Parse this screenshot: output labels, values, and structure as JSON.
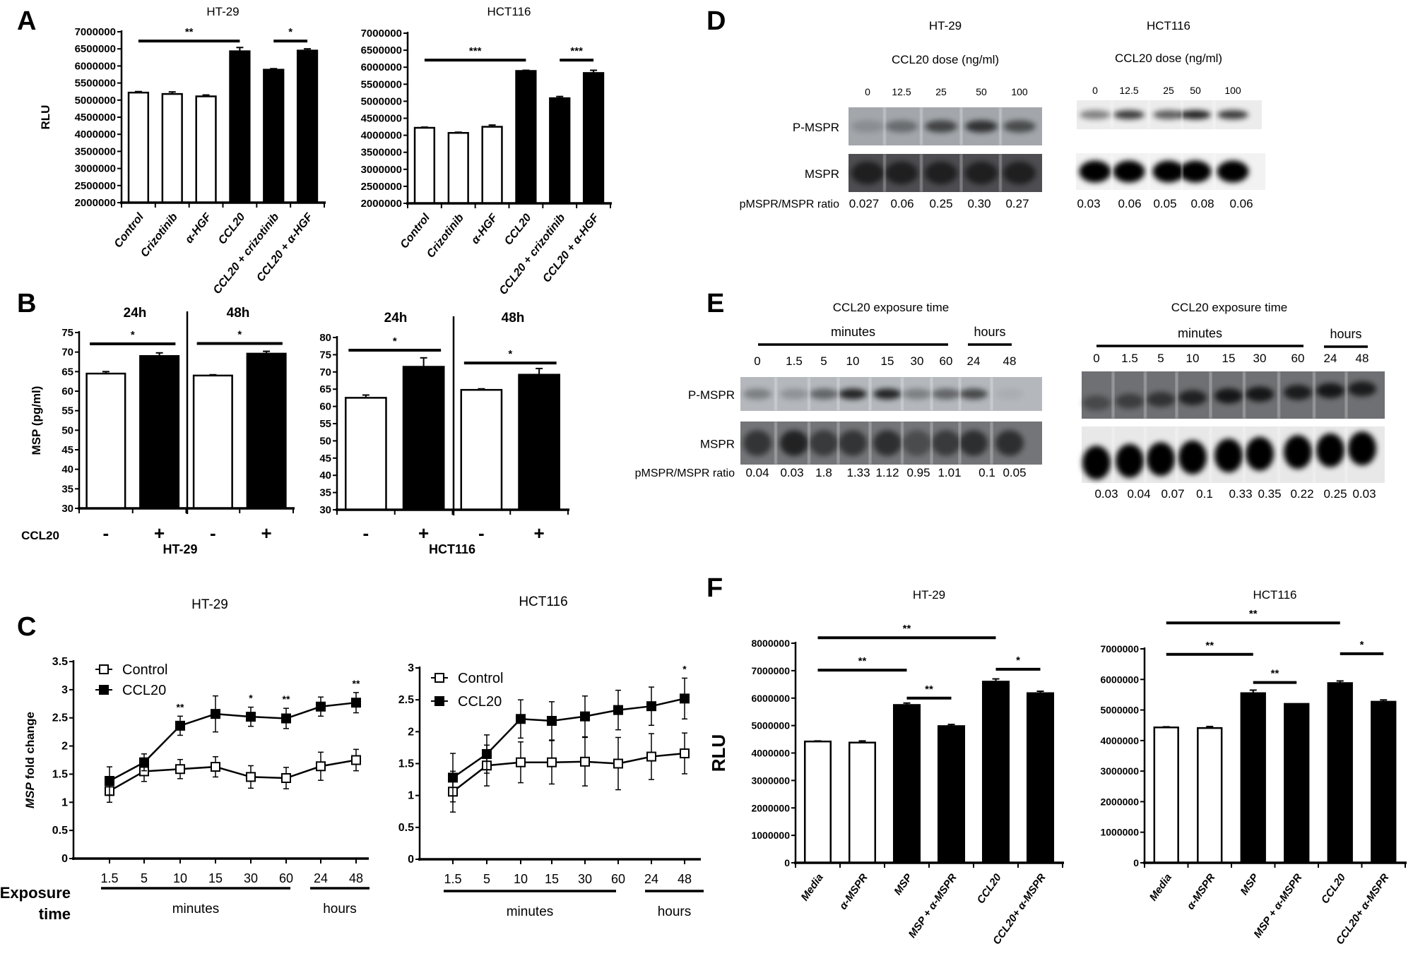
{
  "panel_labels": [
    "A",
    "B",
    "C",
    "D",
    "E",
    "F"
  ],
  "chart_data": [
    {
      "type": "bar",
      "title": "HT-29",
      "ylabel": "RLU",
      "categories": [
        "Control",
        "Crizotinib",
        "α-HGF",
        "CCL20",
        "CCL20 + crizotinib",
        "CCL20 + α-HGF"
      ],
      "values": [
        5220000,
        5180000,
        5110000,
        6430000,
        5890000,
        6450000
      ],
      "errors": [
        30000,
        60000,
        40000,
        110000,
        30000,
        50000
      ],
      "fills": [
        "#ffffff",
        "#ffffff",
        "#ffffff",
        "#000000",
        "#000000",
        "#000000"
      ],
      "ylim": [
        2000000,
        7000000
      ],
      "yticks": [
        2000000,
        2500000,
        3000000,
        3500000,
        4000000,
        4500000,
        5000000,
        5500000,
        6000000,
        6500000,
        7000000
      ],
      "significance": [
        {
          "from": "Control",
          "to": "CCL20",
          "label": "**"
        },
        {
          "from": "CCL20 + crizotinib",
          "to": "CCL20 + α-HGF",
          "label": "*"
        }
      ]
    },
    {
      "type": "bar",
      "title": "HCT116",
      "categories": [
        "Control",
        "Crizotinib",
        "α-HGF",
        "CCL20",
        "CCL20 + crizotinib",
        "CCL20 + α-HGF"
      ],
      "values": [
        4220000,
        4070000,
        4250000,
        5890000,
        5090000,
        5830000
      ],
      "errors": [
        20000,
        20000,
        50000,
        20000,
        50000,
        80000
      ],
      "fills": [
        "#ffffff",
        "#ffffff",
        "#ffffff",
        "#000000",
        "#000000",
        "#000000"
      ],
      "ylim": [
        2000000,
        7000000
      ],
      "yticks": [
        2000000,
        2500000,
        3000000,
        3500000,
        4000000,
        4500000,
        5000000,
        5500000,
        6000000,
        6500000,
        7000000
      ],
      "significance": [
        {
          "from": "Control",
          "to": "CCL20",
          "label": "***"
        },
        {
          "from": "CCL20 + crizotinib",
          "to": "CCL20 + α-HGF",
          "label": "***"
        }
      ]
    },
    {
      "type": "bar",
      "ylabel": "MSP (pg/ml)",
      "xlabel": "HT-29",
      "group_labels": [
        "24h",
        "48h"
      ],
      "treatment_label": "CCL20",
      "categories": [
        "-",
        "+",
        "-",
        "+"
      ],
      "values": [
        64.5,
        69.0,
        64.0,
        69.6
      ],
      "errors": [
        0.5,
        0.8,
        0.2,
        0.6
      ],
      "fills": [
        "#ffffff",
        "#000000",
        "#ffffff",
        "#000000"
      ],
      "ylim": [
        30,
        75
      ],
      "yticks": [
        30,
        35,
        40,
        45,
        50,
        55,
        60,
        65,
        70,
        75
      ],
      "significance": [
        {
          "from": 0,
          "to": 1,
          "label": "*"
        },
        {
          "from": 2,
          "to": 3,
          "label": "*"
        }
      ]
    },
    {
      "type": "bar",
      "xlabel": "HCT116",
      "group_labels": [
        "24h",
        "48h"
      ],
      "categories": [
        "-",
        "+",
        "-",
        "+"
      ],
      "values": [
        62.5,
        71.5,
        64.8,
        69.2
      ],
      "errors": [
        0.8,
        2.6,
        0.3,
        1.8
      ],
      "fills": [
        "#ffffff",
        "#000000",
        "#ffffff",
        "#000000"
      ],
      "ylim": [
        30,
        80
      ],
      "yticks": [
        30,
        35,
        40,
        45,
        50,
        55,
        60,
        65,
        70,
        75,
        80
      ],
      "significance": [
        {
          "from": 0,
          "to": 1,
          "label": "*"
        },
        {
          "from": 2,
          "to": 3,
          "label": "*"
        }
      ]
    },
    {
      "type": "line",
      "title": "HT-29",
      "ylabel_italic": "MSP",
      "ylabel": " fold change",
      "xlabel": [
        "Exposure",
        "time"
      ],
      "x": [
        "1.5",
        "5",
        "10",
        "15",
        "30",
        "60",
        "24",
        "48"
      ],
      "x_groups": [
        {
          "label": "minutes",
          "from": "1.5",
          "to": "60"
        },
        {
          "label": "hours",
          "from": "24",
          "to": "48"
        }
      ],
      "series": [
        {
          "name": "Control",
          "marker": "open-square",
          "values": [
            1.2,
            1.55,
            1.59,
            1.63,
            1.45,
            1.43,
            1.64,
            1.75
          ],
          "errors": [
            0.2,
            0.18,
            0.17,
            0.18,
            0.2,
            0.19,
            0.25,
            0.19
          ]
        },
        {
          "name": "CCL20",
          "marker": "filled-square",
          "values": [
            1.38,
            1.71,
            2.36,
            2.57,
            2.52,
            2.49,
            2.7,
            2.77
          ],
          "errors": [
            0.25,
            0.15,
            0.17,
            0.32,
            0.17,
            0.18,
            0.17,
            0.18
          ]
        }
      ],
      "significance": [
        {
          "x": "10",
          "label": "**"
        },
        {
          "x": "30",
          "label": "*"
        },
        {
          "x": "60",
          "label": "**"
        },
        {
          "x": "48",
          "label": "**"
        }
      ],
      "ylim": [
        0,
        3.5
      ],
      "yticks": [
        0,
        0.5,
        1,
        1.5,
        2,
        2.5,
        3,
        3.5
      ],
      "legend": "top-left"
    },
    {
      "type": "line",
      "title": "HCT116",
      "x": [
        "1.5",
        "5",
        "10",
        "15",
        "30",
        "60",
        "24",
        "48"
      ],
      "x_groups": [
        {
          "label": "minutes",
          "from": "1.5",
          "to": "60"
        },
        {
          "label": "hours",
          "from": "24",
          "to": "48"
        }
      ],
      "series": [
        {
          "name": "Control",
          "marker": "open-square",
          "values": [
            1.06,
            1.47,
            1.52,
            1.52,
            1.53,
            1.5,
            1.61,
            1.66
          ],
          "errors": [
            0.32,
            0.32,
            0.32,
            0.34,
            0.38,
            0.41,
            0.36,
            0.32
          ]
        },
        {
          "name": "CCL20",
          "marker": "filled-square",
          "values": [
            1.28,
            1.65,
            2.2,
            2.17,
            2.24,
            2.34,
            2.4,
            2.52
          ],
          "errors": [
            0.38,
            0.3,
            0.3,
            0.3,
            0.32,
            0.31,
            0.3,
            0.32
          ]
        }
      ],
      "significance": [
        {
          "x": "48",
          "label": "*"
        }
      ],
      "ylim": [
        0,
        3
      ],
      "yticks": [
        0,
        0.5,
        1,
        1.5,
        2,
        2.5,
        3
      ],
      "legend": "top-left"
    },
    {
      "type": "bar",
      "title": "HT-29",
      "ylabel": "RLU",
      "categories": [
        "Media",
        "α-MSPR",
        "MSP",
        "MSP + α-MSPR",
        "CCL20",
        "CCL20+ α-MSPR"
      ],
      "values": [
        4420000,
        4380000,
        5750000,
        4980000,
        6600000,
        6180000
      ],
      "errors": [
        20000,
        60000,
        70000,
        60000,
        100000,
        70000
      ],
      "fills": [
        "#ffffff",
        "#ffffff",
        "#000000",
        "#000000",
        "#000000",
        "#000000"
      ],
      "ylim": [
        0,
        8000000
      ],
      "yticks": [
        0,
        1000000,
        2000000,
        3000000,
        4000000,
        5000000,
        6000000,
        7000000,
        8000000
      ],
      "significance": [
        {
          "from": "Media",
          "to": "CCL20",
          "label": "**"
        },
        {
          "from": "Media",
          "to": "MSP",
          "label": "**"
        },
        {
          "from": "MSP",
          "to": "MSP + α-MSPR",
          "label": "**"
        },
        {
          "from": "CCL20",
          "to": "CCL20+ α-MSPR",
          "label": "*"
        }
      ]
    },
    {
      "type": "bar",
      "title": "HCT116",
      "categories": [
        "Media",
        "α-MSPR",
        "MSP",
        "MSP + α-MSPR",
        "CCL20",
        "CCL20+ α-MSPR"
      ],
      "values": [
        4430000,
        4410000,
        5550000,
        5200000,
        5880000,
        5270000
      ],
      "errors": [
        20000,
        50000,
        100000,
        0,
        70000,
        60000
      ],
      "fills": [
        "#ffffff",
        "#ffffff",
        "#000000",
        "#000000",
        "#000000",
        "#000000"
      ],
      "ylim": [
        0,
        7000000
      ],
      "yticks": [
        0,
        1000000,
        2000000,
        3000000,
        4000000,
        5000000,
        6000000,
        7000000
      ],
      "significance": [
        {
          "from": "Media",
          "to": "CCL20",
          "label": "**"
        },
        {
          "from": "Media",
          "to": "MSP",
          "label": "**"
        },
        {
          "from": "MSP",
          "to": "MSP + α-MSPR",
          "label": "**"
        },
        {
          "from": "CCL20",
          "to": "CCL20+ α-MSPR",
          "label": "*"
        }
      ]
    }
  ],
  "blots": {
    "D": [
      {
        "title": "HT-29",
        "subtitle": "CCL20 dose (ng/ml)",
        "lanes": [
          "0",
          "12.5",
          "25",
          "50",
          "100"
        ],
        "rows": [
          "P-MSPR",
          "MSPR"
        ],
        "ratio_label": "pMSPR/MSPR ratio",
        "ratios": [
          "0.027",
          "0.06",
          "0.25",
          "0.30",
          "0.27"
        ]
      },
      {
        "title": "HCT116",
        "subtitle": "CCL20 dose (ng/ml)",
        "lanes": [
          "0",
          "12.5",
          "25",
          "50",
          "100"
        ],
        "ratios": [
          "0.03",
          "0.06",
          "0.05",
          "0.08",
          "0.06"
        ]
      }
    ],
    "E": [
      {
        "title": "CCL20 exposure time",
        "groups": [
          "minutes",
          "hours"
        ],
        "lanes": [
          "0",
          "1.5",
          "5",
          "10",
          "15",
          "30",
          "60",
          "24",
          "48"
        ],
        "rows": [
          "P-MSPR",
          "MSPR"
        ],
        "ratio_label": "pMSPR/MSPR ratio",
        "ratios": [
          "0.04",
          "0.03",
          "1.8",
          "1.33",
          "1.12",
          "0.95",
          "1.01",
          "0.1",
          "0.05"
        ]
      },
      {
        "title": "CCL20 exposure time",
        "groups": [
          "minutes",
          "hours"
        ],
        "lanes": [
          "0",
          "1.5",
          "5",
          "10",
          "15",
          "30",
          "60",
          "24",
          "48"
        ],
        "ratios": [
          "0.03",
          "0.04",
          "0.07",
          "0.1",
          "0.33",
          "0.35",
          "0.22",
          "0.25",
          "0.03"
        ]
      }
    ]
  }
}
